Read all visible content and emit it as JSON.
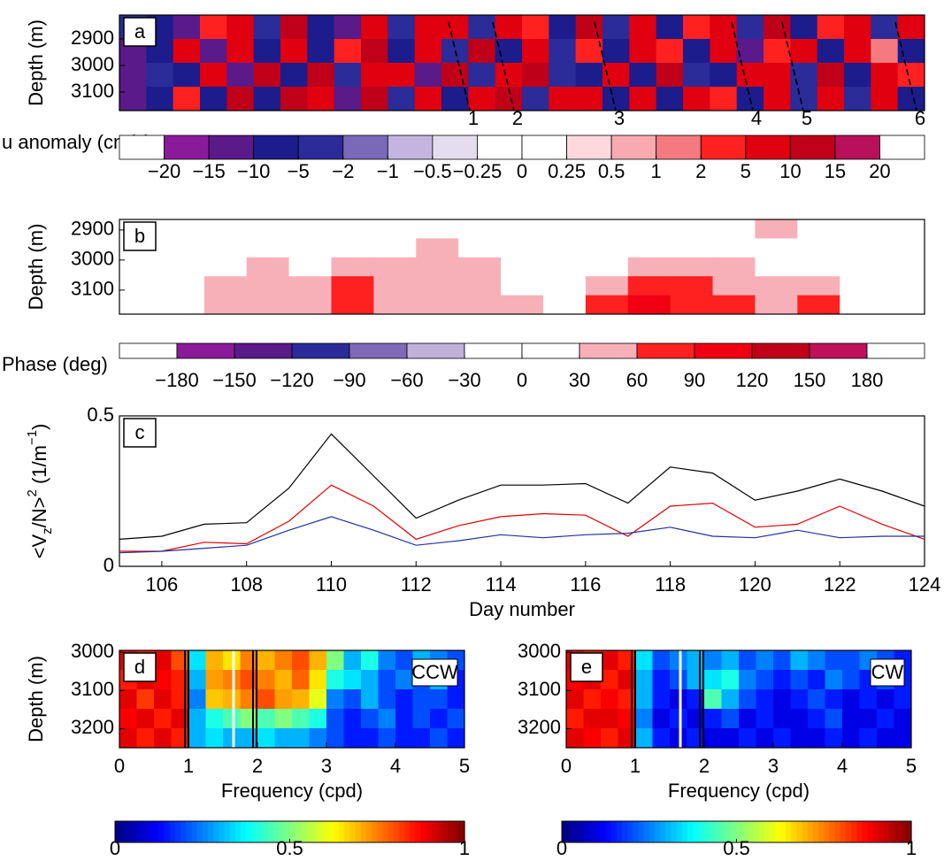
{
  "chart_data": [
    {
      "type": "heatmap",
      "panel_label": "a",
      "y_label": "Depth (m)",
      "xlim": [
        105,
        124
      ],
      "ylim": [
        2810,
        3170
      ],
      "yticks": [
        2900,
        3000,
        3100
      ],
      "z": [
        [
          -3,
          -8,
          -12,
          3,
          8,
          -4,
          12,
          -6,
          -10,
          7,
          -2,
          9,
          6,
          -4,
          8,
          3,
          -7,
          11,
          -3,
          6,
          -9,
          4,
          7,
          -2,
          12,
          -6,
          3,
          8,
          -4,
          6
        ],
        [
          -10,
          -6,
          8,
          -12,
          6,
          -7,
          9,
          -8,
          4,
          12,
          -5,
          6,
          -3,
          14,
          -9,
          7,
          -4,
          5,
          -8,
          10,
          3,
          -6,
          9,
          -11,
          4,
          7,
          -5,
          9,
          2,
          -7
        ],
        [
          -14,
          -3,
          -9,
          7,
          -11,
          11,
          -5,
          13,
          -3,
          8,
          9,
          -12,
          11,
          -4,
          6,
          12,
          -3,
          -9,
          8,
          -5,
          12,
          -4,
          -7,
          6,
          9,
          -3,
          11,
          -6,
          8,
          4
        ],
        [
          -12,
          -9,
          4,
          -8,
          12,
          -6,
          14,
          7,
          -10,
          11,
          -4,
          7,
          -8,
          9,
          13,
          -4,
          8,
          6,
          -5,
          9,
          -7,
          10,
          5,
          -9,
          7,
          -4,
          8,
          -3,
          10,
          -5
        ]
      ],
      "annotations": [
        "1",
        "2",
        "3",
        "4",
        "5",
        "6"
      ],
      "colorbar": {
        "label": "u anomaly (cm/s)",
        "scale": "discrete",
        "ticks": [
          {
            "value": -20,
            "label": "−20"
          },
          {
            "value": -15,
            "label": "−15"
          },
          {
            "value": -10,
            "label": "−10"
          },
          {
            "value": -5,
            "label": "−5"
          },
          {
            "value": -2,
            "label": "−2"
          },
          {
            "value": -1,
            "label": "−1"
          },
          {
            "value": -0.5,
            "label": "−0.5"
          },
          {
            "value": -0.25,
            "label": "−0.25"
          },
          0,
          0.25,
          0.5,
          1,
          2,
          5,
          10,
          15,
          20
        ],
        "colors": [
          "#ffffff",
          "#8b1a9b",
          "#5a1a8a",
          "#1c1c8c",
          "#2b2b9a",
          "#7a68b8",
          "#c4b4e0",
          "#e4dcef",
          "#ffffff",
          "#ffffff",
          "#fdd8dc",
          "#f8aab0",
          "#f47a80",
          "#ff2020",
          "#e00010",
          "#c00018",
          "#b8105a",
          "#ffffff"
        ]
      }
    },
    {
      "type": "heatmap",
      "panel_label": "b",
      "y_label": "Depth (m)",
      "xlim": [
        105,
        124
      ],
      "ylim": [
        2865,
        3180
      ],
      "yticks": [
        2900,
        3000,
        3100
      ],
      "z": [
        [
          5,
          10,
          15,
          5,
          10,
          15,
          20,
          10,
          5,
          15,
          10,
          5,
          10,
          15,
          20,
          40,
          10,
          5,
          5
        ],
        [
          10,
          5,
          5,
          10,
          15,
          20,
          25,
          35,
          20,
          10,
          5,
          10,
          15,
          20,
          15,
          20,
          15,
          10,
          5
        ],
        [
          15,
          10,
          20,
          40,
          25,
          45,
          35,
          40,
          35,
          20,
          10,
          30,
          45,
          50,
          35,
          25,
          20,
          10,
          5
        ],
        [
          20,
          15,
          35,
          45,
          40,
          70,
          45,
          45,
          40,
          30,
          15,
          55,
          85,
          75,
          50,
          40,
          45,
          20,
          10
        ],
        [
          10,
          20,
          40,
          50,
          35,
          75,
          40,
          50,
          60,
          50,
          20,
          65,
          110,
          85,
          70,
          60,
          70,
          25,
          5
        ]
      ],
      "colorbar": {
        "label": "Phase (deg)",
        "scale": "discrete",
        "ticks": [
          {
            "value": -180,
            "label": "−180"
          },
          {
            "value": -150,
            "label": "−150"
          },
          {
            "value": -120,
            "label": "−120"
          },
          {
            "value": -90,
            "label": "−90"
          },
          {
            "value": -60,
            "label": "−60"
          },
          {
            "value": -30,
            "label": "−30"
          },
          0,
          30,
          60,
          90,
          120,
          150,
          180
        ],
        "colors": [
          "#ffffff",
          "#8b1a9b",
          "#5a1a8a",
          "#2a2a9a",
          "#7e6ab8",
          "#c0b0dc",
          "#ffffff",
          "#ffffff",
          "#f8b0b8",
          "#ff2020",
          "#f00010",
          "#c00018",
          "#c0105a",
          "#ffffff"
        ]
      }
    },
    {
      "type": "line",
      "panel_label": "c",
      "x_label": "Day number",
      "y_label": [
        "<V",
        "z",
        "/N>",
        "2",
        " (1/m",
        "−1",
        ")"
      ],
      "x": [
        105,
        106,
        107,
        108,
        109,
        110,
        111,
        112,
        113,
        114,
        115,
        116,
        117,
        118,
        119,
        120,
        121,
        122,
        123,
        124
      ],
      "xlim": [
        105,
        124
      ],
      "xticks": [
        106,
        108,
        110,
        112,
        114,
        116,
        118,
        120,
        122,
        124
      ],
      "ylim": [
        0,
        0.5
      ],
      "yticks": [
        0,
        0.5
      ],
      "series": [
        {
          "color": "#000000",
          "values": [
            0.09,
            0.1,
            0.14,
            0.145,
            0.26,
            0.44,
            0.3,
            0.16,
            0.22,
            0.27,
            0.27,
            0.275,
            0.21,
            0.33,
            0.31,
            0.22,
            0.25,
            0.29,
            0.25,
            0.2
          ]
        },
        {
          "color": "#e00000",
          "values": [
            0.05,
            0.05,
            0.08,
            0.075,
            0.15,
            0.27,
            0.2,
            0.09,
            0.135,
            0.165,
            0.175,
            0.17,
            0.1,
            0.2,
            0.21,
            0.13,
            0.14,
            0.2,
            0.14,
            0.09
          ]
        },
        {
          "color": "#2030a0",
          "values": [
            0.045,
            0.05,
            0.06,
            0.07,
            0.12,
            0.165,
            0.12,
            0.07,
            0.085,
            0.105,
            0.095,
            0.105,
            0.11,
            0.13,
            0.1,
            0.095,
            0.12,
            0.095,
            0.1,
            0.1
          ]
        }
      ]
    },
    {
      "type": "heatmap",
      "panel_label": "d",
      "inset_label": "CCW",
      "y_label": "Depth (m)",
      "x_label": "Frequency (cpd)",
      "xlim": [
        0,
        5
      ],
      "xticks": [
        0,
        1,
        2,
        3,
        4,
        5
      ],
      "ylim": [
        2995,
        3250
      ],
      "yticks": [
        3000,
        3100,
        3200
      ],
      "z": [
        [
          0.9,
          0.85,
          0.9,
          0.8,
          0.35,
          0.7,
          0.65,
          0.75,
          0.7,
          0.75,
          0.8,
          0.7,
          0.5,
          0.3,
          0.4,
          0.25,
          0.2,
          0.3,
          0.25,
          0.2
        ],
        [
          0.85,
          0.9,
          0.88,
          0.85,
          0.3,
          0.72,
          0.75,
          0.8,
          0.75,
          0.7,
          0.78,
          0.65,
          0.4,
          0.35,
          0.3,
          0.2,
          0.25,
          0.2,
          0.3,
          0.15
        ],
        [
          0.9,
          0.82,
          0.9,
          0.85,
          0.25,
          0.68,
          0.7,
          0.75,
          0.8,
          0.72,
          0.7,
          0.6,
          0.25,
          0.2,
          0.3,
          0.2,
          0.15,
          0.2,
          0.2,
          0.15
        ],
        [
          0.88,
          0.9,
          0.85,
          0.9,
          0.3,
          0.4,
          0.45,
          0.5,
          0.45,
          0.5,
          0.45,
          0.4,
          0.2,
          0.15,
          0.2,
          0.25,
          0.15,
          0.2,
          0.15,
          0.2
        ],
        [
          0.9,
          0.85,
          0.9,
          0.85,
          0.3,
          0.35,
          0.3,
          0.3,
          0.35,
          0.3,
          0.3,
          0.25,
          0.2,
          0.15,
          0.15,
          0.2,
          0.15,
          0.15,
          0.2,
          0.15
        ]
      ],
      "colorbar": {
        "scale": "continuous",
        "colormap": "jet",
        "lim": [
          0,
          1
        ],
        "ticks": [
          0,
          0.5,
          1
        ]
      }
    },
    {
      "type": "heatmap",
      "panel_label": "e",
      "inset_label": "CW",
      "x_label": "Frequency (cpd)",
      "xlim": [
        0,
        5
      ],
      "xticks": [
        0,
        1,
        2,
        3,
        4,
        5
      ],
      "ylim": [
        2995,
        3250
      ],
      "yticks": [
        3000,
        3100,
        3200
      ],
      "z": [
        [
          0.9,
          0.85,
          0.9,
          0.85,
          0.35,
          0.2,
          0.25,
          0.3,
          0.25,
          0.3,
          0.2,
          0.25,
          0.2,
          0.3,
          0.25,
          0.2,
          0.2,
          0.25,
          0.2,
          0.15
        ],
        [
          0.88,
          0.9,
          0.85,
          0.9,
          0.3,
          0.15,
          0.2,
          0.3,
          0.35,
          0.4,
          0.25,
          0.2,
          0.15,
          0.2,
          0.15,
          0.25,
          0.2,
          0.15,
          0.2,
          0.15
        ],
        [
          0.9,
          0.85,
          0.88,
          0.85,
          0.3,
          0.15,
          0.1,
          0.15,
          0.45,
          0.3,
          0.2,
          0.15,
          0.1,
          0.15,
          0.2,
          0.15,
          0.1,
          0.15,
          0.1,
          0.15
        ],
        [
          0.85,
          0.9,
          0.9,
          0.88,
          0.25,
          0.1,
          0.15,
          0.1,
          0.15,
          0.2,
          0.1,
          0.15,
          0.1,
          0.1,
          0.15,
          0.2,
          0.1,
          0.1,
          0.15,
          0.1
        ],
        [
          0.9,
          0.88,
          0.85,
          0.9,
          0.3,
          0.15,
          0.1,
          0.15,
          0.1,
          0.1,
          0.15,
          0.1,
          0.15,
          0.1,
          0.1,
          0.15,
          0.1,
          0.15,
          0.1,
          0.1
        ]
      ],
      "colorbar": {
        "scale": "continuous",
        "colormap": "jet",
        "lim": [
          0,
          1
        ],
        "ticks": [
          0,
          0.5,
          1
        ]
      }
    }
  ]
}
